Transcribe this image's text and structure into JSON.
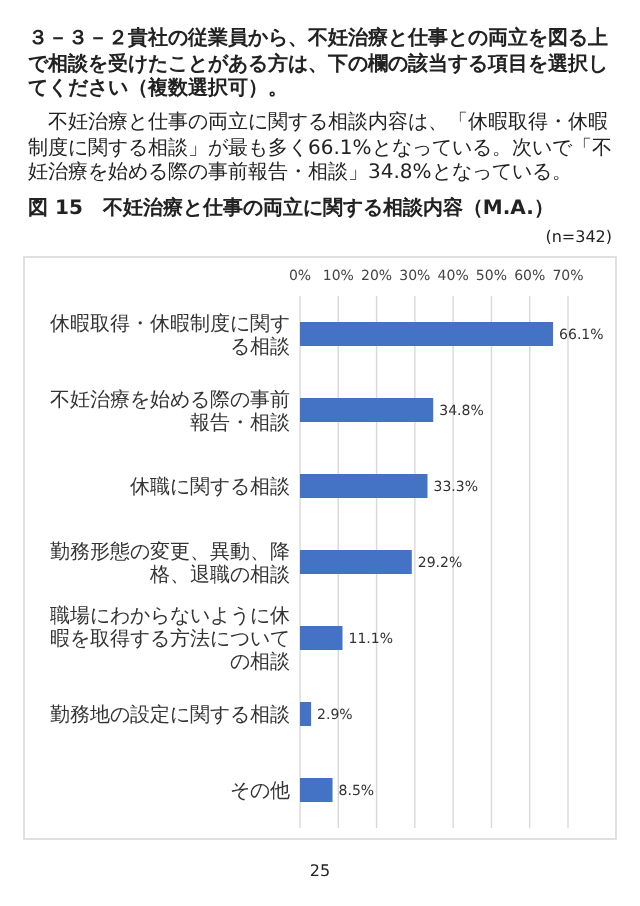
{
  "chart_data": {
    "type": "bar",
    "orientation": "horizontal",
    "title": "図 15　不妊治療と仕事の両立に関する相談内容（M.A.）",
    "annotations": [
      "３－３－２貴社の従業員から、不妊治療と仕事との両立を図る上で相談を受けたことがある方は、下の欄の該当する項目を選択してください（複数選択可）。",
      "不妊治療と仕事の両立に関する相談内容は、「休暇取得・休暇制度に関する相談」が最も多く66.1%となっている。次いで「不妊治療を始める際の事前報告・相談」34.8%となっている。",
      "(n=342)",
      "25"
    ],
    "categories": [
      "休暇取得・休暇制度に関する相談",
      "不妊治療を始める際の事前報告・相談",
      "休職に関する相談",
      "勤務形態の変更、異動、降格、退職の相談",
      "職場にわからないように休暇を取得する方法についての相談",
      "勤務地の設定に関する相談",
      "その他"
    ],
    "values": [
      66.1,
      34.8,
      33.3,
      29.2,
      11.1,
      2.9,
      8.5
    ],
    "value_labels": [
      "66.1%",
      "34.8%",
      "33.3%",
      "29.2%",
      "11.1%",
      "2.9%",
      "8.5%"
    ],
    "color": "#4472c4",
    "xlim": [
      0,
      70
    ],
    "xticks": [
      {
        "value": 0,
        "label": "0%"
      },
      {
        "value": 10,
        "label": "10%"
      },
      {
        "value": 20,
        "label": "20%"
      },
      {
        "value": 30,
        "label": "30%"
      },
      {
        "value": 40,
        "label": "40%"
      },
      {
        "value": 50,
        "label": "50%"
      },
      {
        "value": 60,
        "label": "60%"
      },
      {
        "value": 70,
        "label": "70%"
      }
    ],
    "grid": "x"
  }
}
